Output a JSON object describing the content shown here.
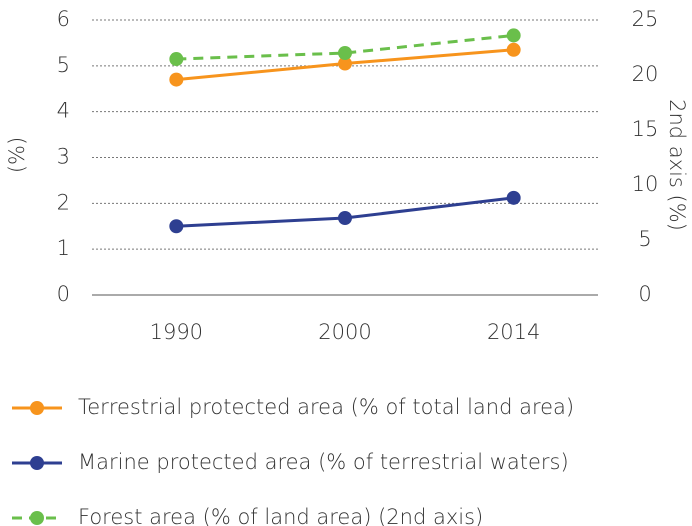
{
  "chart_data": {
    "type": "line",
    "categories": [
      "1990",
      "2000",
      "2014"
    ],
    "ylabel": "(%)",
    "y2label": "2nd axis (%)",
    "ylim": [
      0,
      6
    ],
    "yticks": [
      0,
      1,
      2,
      3,
      4,
      5,
      6
    ],
    "y2lim": [
      0,
      25
    ],
    "y2ticks": [
      0,
      5,
      10,
      15,
      20,
      25
    ],
    "grid": true,
    "series": [
      {
        "name": "Terrestrial protected area (% of total land area)",
        "color": "#f7941d",
        "values": [
          4.7,
          5.05,
          5.35
        ]
      },
      {
        "name": "Marine protected area (% of terrestrial waters)",
        "color": "#2e3f91",
        "values": [
          1.5,
          1.68,
          2.12
        ]
      },
      {
        "name": "Forest area (% of land area) (2nd axis)",
        "color": "#6abf4b",
        "values": [
          21.45,
          22.0,
          23.6
        ],
        "axis": "y2",
        "dashed": true
      }
    ]
  }
}
